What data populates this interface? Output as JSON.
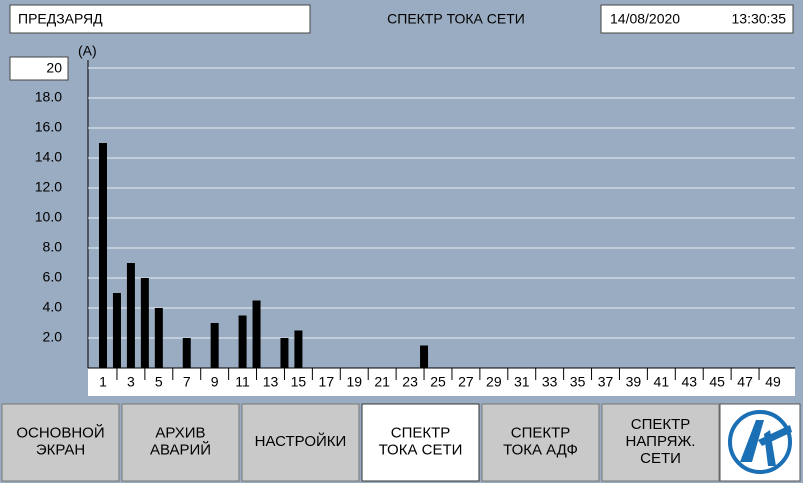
{
  "header": {
    "status": "ПРЕДЗАРЯД",
    "title": "СПЕКТР ТОКА СЕТИ",
    "date": "14/08/2020",
    "time": "13:30:35"
  },
  "chart_data": {
    "type": "bar",
    "ylabel": "(A)",
    "categories": [
      1,
      null,
      3,
      null,
      5,
      null,
      7,
      null,
      9,
      null,
      11,
      null,
      13,
      null,
      15,
      null,
      17,
      null,
      19,
      null,
      21,
      null,
      23,
      null,
      25,
      null,
      27,
      null,
      29,
      null,
      31,
      null,
      33,
      null,
      35,
      null,
      37,
      null,
      39,
      null,
      41,
      null,
      43,
      null,
      45,
      null,
      47,
      null,
      49
    ],
    "values": [
      15,
      5,
      7,
      6,
      4,
      0,
      2,
      0,
      3,
      0,
      3.5,
      4.5,
      0,
      2,
      2.5,
      0,
      0,
      0,
      0,
      0,
      0,
      0,
      0,
      1.5,
      0,
      0,
      0,
      0,
      0,
      0,
      0,
      0,
      0,
      0,
      0,
      0,
      0,
      0,
      0,
      0,
      0,
      0,
      0,
      0,
      0,
      0,
      0,
      0,
      0
    ],
    "color": "#000000",
    "ylim": [
      0,
      20
    ],
    "yticks": [
      {
        "value": 2,
        "label": "2.0"
      },
      {
        "value": 4,
        "label": "4.0"
      },
      {
        "value": 6,
        "label": "6.0"
      },
      {
        "value": 8,
        "label": "8.0"
      },
      {
        "value": 10,
        "label": "10.0"
      },
      {
        "value": 12,
        "label": "12.0"
      },
      {
        "value": 14,
        "label": "14.0"
      },
      {
        "value": 16,
        "label": "16.0"
      },
      {
        "value": 18,
        "label": "18.0"
      },
      20
    ],
    "grid": true
  },
  "nav": {
    "buttons": [
      [
        "ОСНОВНОЙ",
        "ЭКРАН"
      ],
      [
        "АРХИВ",
        "АВАРИЙ"
      ],
      [
        "НАСТРОЙКИ"
      ],
      [
        "СПЕКТР",
        "ТОКА СЕТИ"
      ],
      [
        "СПЕКТР",
        "ТОКА АДФ"
      ],
      [
        "СПЕКТР",
        "НАПРЯЖ.",
        "СЕТИ"
      ]
    ],
    "active": 3
  }
}
